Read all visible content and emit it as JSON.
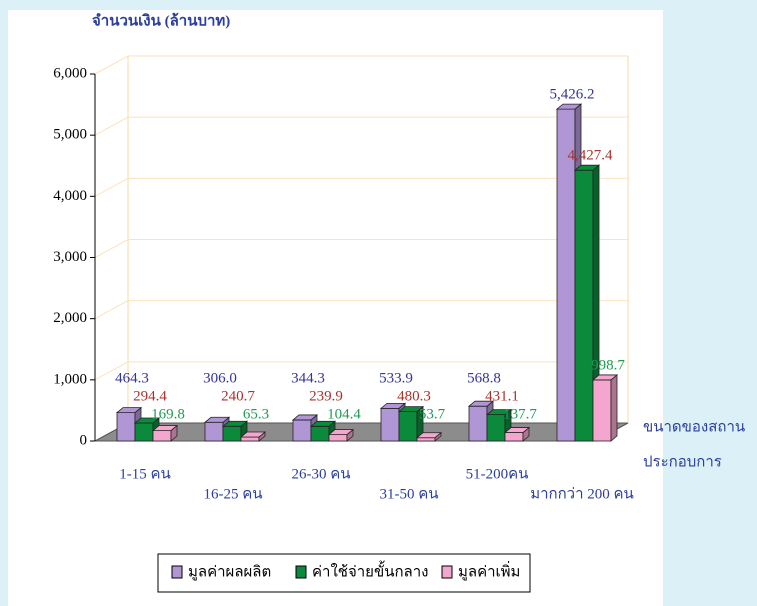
{
  "chart_data": {
    "type": "bar3d",
    "y_label": "จำนวนเงิน (ล้านบาท)",
    "x_label_lines": [
      "ขนาดของสถาน",
      "ประกอบการ"
    ],
    "categories": [
      "1-15 คน",
      "16-25 คน",
      "26-30 คน",
      "31-50 คน",
      "51-200คน",
      "มากกว่า 200 คน"
    ],
    "series": [
      {
        "name": "มูลค่าผลผลิต",
        "color": "#b196d6",
        "label_color": "#33339a",
        "values": [
          464.3,
          306.0,
          344.3,
          533.9,
          568.8,
          5426.2
        ],
        "value_labels": [
          "464.3",
          "306.0",
          "344.3",
          "533.9",
          "568.8",
          "5,426.2"
        ]
      },
      {
        "name": "ค่าใช้จ่ายขั้นกลาง",
        "color": "#0b8a3c",
        "label_color": "#a8322c",
        "values": [
          294.4,
          240.7,
          239.9,
          480.3,
          431.1,
          4427.4
        ],
        "value_labels": [
          "294.4",
          "240.7",
          "239.9",
          "480.3",
          "431.1",
          "4,427.4"
        ]
      },
      {
        "name": "มูลค่าเพิ่ม",
        "color": "#f4a6cf",
        "label_color": "#1f9a55",
        "values": [
          169.8,
          65.3,
          104.4,
          53.7,
          137.7,
          998.7
        ],
        "value_labels": [
          "169.8",
          "65.3",
          "104.4",
          "53.7",
          "137.7",
          "998.7"
        ]
      }
    ],
    "ylim": [
      0,
      6000
    ],
    "yticks": [
      0,
      {
        "value": 1000,
        "label": "1,000"
      },
      {
        "value": 2000,
        "label": "2,000"
      },
      {
        "value": 3000,
        "label": "3,000"
      },
      {
        "value": 4000,
        "label": "4,000"
      },
      {
        "value": 5000,
        "label": "5,000"
      },
      {
        "value": 6000,
        "label": "6,000"
      }
    ],
    "grid": true
  }
}
